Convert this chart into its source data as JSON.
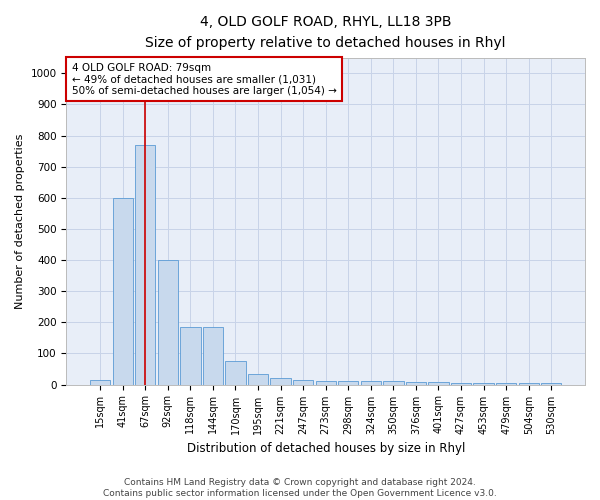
{
  "title": "4, OLD GOLF ROAD, RHYL, LL18 3PB",
  "subtitle": "Size of property relative to detached houses in Rhyl",
  "xlabel": "Distribution of detached houses by size in Rhyl",
  "ylabel": "Number of detached properties",
  "bar_color": "#c8d9ed",
  "bar_edge_color": "#5b9bd5",
  "grid_color": "#c8d3e8",
  "bg_color": "#e8eef8",
  "categories": [
    "15sqm",
    "41sqm",
    "67sqm",
    "92sqm",
    "118sqm",
    "144sqm",
    "170sqm",
    "195sqm",
    "221sqm",
    "247sqm",
    "273sqm",
    "298sqm",
    "324sqm",
    "350sqm",
    "376sqm",
    "401sqm",
    "427sqm",
    "453sqm",
    "479sqm",
    "504sqm",
    "530sqm"
  ],
  "values": [
    15,
    600,
    770,
    400,
    185,
    185,
    75,
    35,
    20,
    15,
    12,
    12,
    10,
    10,
    8,
    8,
    5,
    5,
    5,
    5,
    5
  ],
  "vline_index": 2,
  "vline_color": "#cc0000",
  "annotation_text": "4 OLD GOLF ROAD: 79sqm\n← 49% of detached houses are smaller (1,031)\n50% of semi-detached houses are larger (1,054) →",
  "annotation_box_color": "#ffffff",
  "annotation_box_edge": "#cc0000",
  "ylim": [
    0,
    1050
  ],
  "yticks": [
    0,
    100,
    200,
    300,
    400,
    500,
    600,
    700,
    800,
    900,
    1000
  ],
  "footer_text": "Contains HM Land Registry data © Crown copyright and database right 2024.\nContains public sector information licensed under the Open Government Licence v3.0.",
  "title_fontsize": 10,
  "subtitle_fontsize": 9,
  "axis_label_fontsize": 8,
  "tick_fontsize": 7,
  "footer_fontsize": 6.5,
  "annotation_fontsize": 7.5
}
